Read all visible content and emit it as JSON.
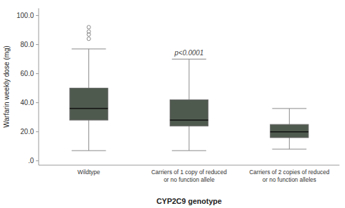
{
  "chart_data": {
    "type": "box",
    "xlabel": "CYP2C9 genotype",
    "ylabel": "Warfarin weekly dose (mg)",
    "categories": [
      "Wildtype",
      "Carriers of 1 copy of reduced\nor no function allele",
      "Carriers of 2 copies of reduced\nor no function alleles"
    ],
    "median": [
      36,
      28,
      20
    ],
    "q1": [
      28,
      24,
      16
    ],
    "q3": [
      50,
      42,
      25
    ],
    "whisker_low": [
      7,
      7,
      8
    ],
    "whisker_high": [
      77,
      70,
      36
    ],
    "outliers": [
      [
        84,
        87,
        89,
        92
      ],
      [],
      []
    ],
    "color": "#4f5a4e",
    "annotation": "p<0.0001",
    "ylim": [
      -3,
      105
    ],
    "yticks": [
      {
        "value": 0.0,
        "label": ".0"
      },
      {
        "value": 20.0,
        "label": "20.0"
      },
      {
        "value": 40.0,
        "label": "40.0"
      },
      {
        "value": 60.0,
        "label": "60.0"
      },
      {
        "value": 80.0,
        "label": "80.0"
      },
      {
        "value": 100.0,
        "label": "100.0"
      }
    ],
    "grid": false
  }
}
